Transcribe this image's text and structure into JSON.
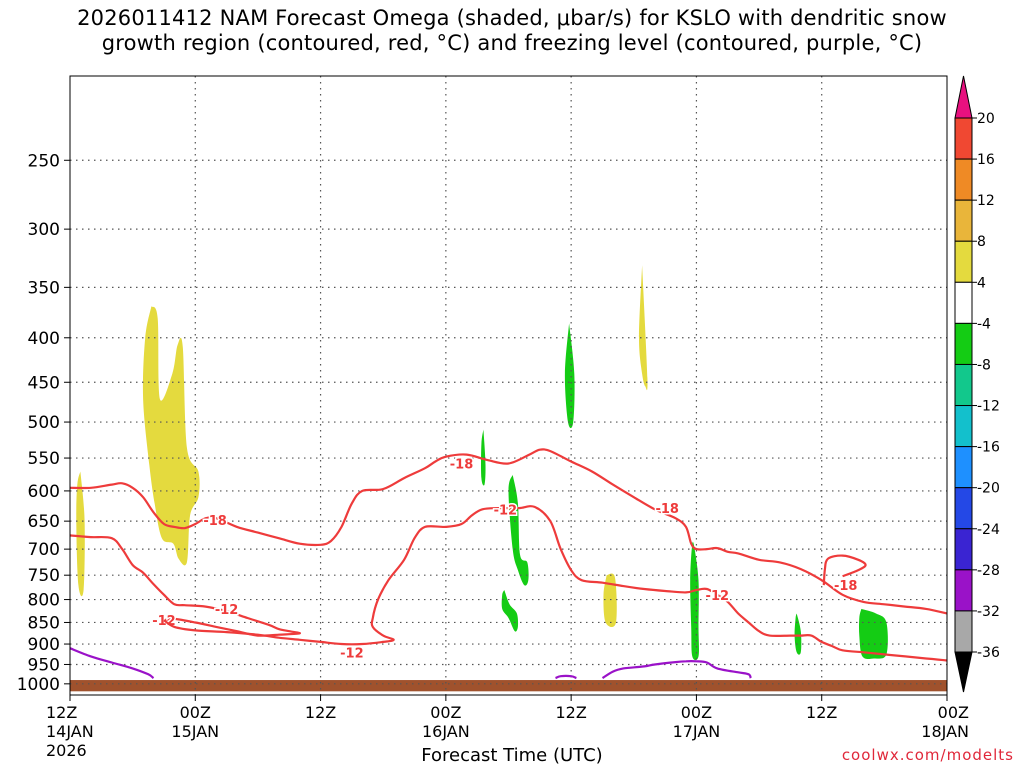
{
  "title": "2026011412 NAM Forecast Omega (shaded, μbar/s) for KSLO with dendritic snow\ngrowth region (contoured, red, °C) and freezing level (contoured, purple, °C)",
  "credit": "coolwx.com/modelts",
  "chart_data": {
    "type": "heatmap",
    "xlabel": "Forecast Time (UTC)",
    "ylabel": "",
    "x_ticks": [
      {
        "h": 0,
        "l1": "12Z",
        "l2": "14JAN",
        "l3": "2026"
      },
      {
        "h": 12,
        "l1": "00Z",
        "l2": "15JAN",
        "l3": ""
      },
      {
        "h": 24,
        "l1": "12Z",
        "l2": "",
        "l3": ""
      },
      {
        "h": 36,
        "l1": "00Z",
        "l2": "16JAN",
        "l3": ""
      },
      {
        "h": 48,
        "l1": "12Z",
        "l2": "",
        "l3": ""
      },
      {
        "h": 60,
        "l1": "00Z",
        "l2": "17JAN",
        "l3": ""
      },
      {
        "h": 72,
        "l1": "12Z",
        "l2": "",
        "l3": ""
      },
      {
        "h": 84,
        "l1": "00Z",
        "l2": "18JAN",
        "l3": ""
      }
    ],
    "xlim_hours": [
      0,
      84
    ],
    "y_ticks": [
      250,
      300,
      350,
      400,
      450,
      500,
      550,
      600,
      650,
      700,
      750,
      800,
      850,
      900,
      950,
      1000
    ],
    "ylim_hPa": [
      1030,
      200
    ],
    "y_scale": "log-pressure",
    "grid": true,
    "colorbar": {
      "levels": [
        20,
        16,
        12,
        8,
        4,
        -4,
        -8,
        -12,
        -16,
        -20,
        -24,
        -28,
        -32,
        -36
      ],
      "colors": [
        "#e8117f",
        "#f04832",
        "#ef8a25",
        "#e9b53a",
        "#e4da3e",
        "#ffffff",
        "#14cc14",
        "#12c88c",
        "#13c0cc",
        "#1e90ff",
        "#2448e6",
        "#3a24d2",
        "#9a12c8",
        "#a8a8a8",
        "#000000"
      ],
      "top_color": "#e8117f",
      "bottom_color": "#000000"
    },
    "omega_areas": [
      {
        "color": "#e4da3e",
        "pts": [
          [
            1.0,
            570
          ],
          [
            1.4,
            650
          ],
          [
            1.3,
            780
          ],
          [
            0.8,
            770
          ],
          [
            0.6,
            650
          ],
          [
            0.7,
            590
          ]
        ]
      },
      {
        "color": "#e4da3e",
        "pts": [
          [
            7.8,
            368
          ],
          [
            8.4,
            380
          ],
          [
            8.6,
            470
          ],
          [
            9.8,
            440
          ],
          [
            10.3,
            408
          ],
          [
            10.8,
            410
          ],
          [
            11.2,
            535
          ],
          [
            12.3,
            570
          ],
          [
            12.3,
            610
          ],
          [
            11.5,
            640
          ],
          [
            11.2,
            725
          ],
          [
            10.4,
            718
          ],
          [
            9.9,
            690
          ],
          [
            8.8,
            680
          ],
          [
            8.1,
            620
          ],
          [
            7.6,
            560
          ],
          [
            7.0,
            470
          ],
          [
            7.2,
            400
          ]
        ]
      },
      {
        "color": "#e4da3e",
        "pts": [
          [
            54.8,
            330
          ],
          [
            55.3,
            445
          ],
          [
            55.1,
            455
          ],
          [
            54.8,
            440
          ],
          [
            54.5,
            400
          ]
        ]
      },
      {
        "color": "#e4da3e",
        "pts": [
          [
            51.4,
            750
          ],
          [
            52.2,
            755
          ],
          [
            52.3,
            850
          ],
          [
            51.3,
            850
          ],
          [
            51.1,
            790
          ]
        ]
      },
      {
        "color": "#14cc14",
        "pts": [
          [
            47.8,
            385
          ],
          [
            48.3,
            440
          ],
          [
            48.2,
            500
          ],
          [
            47.7,
            500
          ],
          [
            47.4,
            440
          ]
        ]
      },
      {
        "color": "#14cc14",
        "pts": [
          [
            39.6,
            510
          ],
          [
            39.8,
            560
          ],
          [
            39.7,
            590
          ],
          [
            39.4,
            580
          ],
          [
            39.4,
            530
          ]
        ]
      },
      {
        "color": "#14cc14",
        "pts": [
          [
            42.4,
            575
          ],
          [
            42.9,
            620
          ],
          [
            43.1,
            710
          ],
          [
            43.8,
            725
          ],
          [
            43.9,
            760
          ],
          [
            43.5,
            770
          ],
          [
            42.9,
            740
          ],
          [
            42.4,
            700
          ],
          [
            42.0,
            600
          ]
        ]
      },
      {
        "color": "#14cc14",
        "pts": [
          [
            41.6,
            780
          ],
          [
            42.1,
            810
          ],
          [
            42.8,
            830
          ],
          [
            42.9,
            860
          ],
          [
            42.6,
            870
          ],
          [
            42.0,
            840
          ],
          [
            41.4,
            820
          ],
          [
            41.4,
            790
          ]
        ]
      },
      {
        "color": "#14cc14",
        "pts": [
          [
            59.8,
            695
          ],
          [
            60.2,
            760
          ],
          [
            60.2,
            860
          ],
          [
            60.2,
            930
          ],
          [
            59.6,
            930
          ],
          [
            59.5,
            860
          ],
          [
            59.4,
            760
          ],
          [
            59.6,
            690
          ]
        ]
      },
      {
        "color": "#14cc14",
        "pts": [
          [
            69.6,
            830
          ],
          [
            70.0,
            870
          ],
          [
            70.0,
            920
          ],
          [
            69.6,
            920
          ],
          [
            69.4,
            880
          ],
          [
            69.5,
            840
          ]
        ]
      },
      {
        "color": "#14cc14",
        "pts": [
          [
            75.8,
            820
          ],
          [
            77.2,
            830
          ],
          [
            78.2,
            850
          ],
          [
            78.2,
            925
          ],
          [
            77.0,
            935
          ],
          [
            75.9,
            930
          ],
          [
            75.6,
            880
          ],
          [
            75.6,
            840
          ]
        ]
      }
    ],
    "contours": [
      {
        "color": "#ee3b3b",
        "width": 2.2,
        "label": "-18",
        "label_at": [
          13.9,
          648
        ],
        "pts": [
          [
            0,
            595
          ],
          [
            2,
            595
          ],
          [
            4,
            590
          ],
          [
            5,
            588
          ],
          [
            6,
            595
          ],
          [
            7,
            610
          ],
          [
            8,
            635
          ],
          [
            9,
            655
          ],
          [
            10,
            660
          ],
          [
            11,
            662
          ],
          [
            12,
            655
          ],
          [
            13,
            645
          ],
          [
            14,
            645
          ],
          [
            16,
            660
          ],
          [
            18,
            670
          ],
          [
            20,
            680
          ],
          [
            22,
            690
          ],
          [
            24,
            692
          ],
          [
            25,
            685
          ],
          [
            26,
            660
          ],
          [
            27,
            620
          ],
          [
            28,
            600
          ],
          [
            30,
            597
          ],
          [
            32,
            580
          ],
          [
            34,
            565
          ],
          [
            35,
            555
          ],
          [
            36,
            548
          ],
          [
            38,
            545
          ],
          [
            40,
            553
          ],
          [
            42,
            558
          ],
          [
            44,
            545
          ],
          [
            45,
            538
          ],
          [
            46,
            540
          ],
          [
            48,
            555
          ],
          [
            50,
            570
          ],
          [
            52,
            590
          ],
          [
            54,
            610
          ],
          [
            56,
            630
          ],
          [
            58,
            645
          ],
          [
            59,
            660
          ],
          [
            59.5,
            690
          ],
          [
            60,
            700
          ],
          [
            61,
            700
          ],
          [
            62,
            698
          ],
          [
            63,
            705
          ],
          [
            64,
            708
          ],
          [
            66,
            720
          ],
          [
            68,
            725
          ],
          [
            70,
            738
          ],
          [
            72,
            760
          ],
          [
            74,
            790
          ],
          [
            76,
            805
          ],
          [
            78,
            810
          ],
          [
            80,
            815
          ],
          [
            82,
            820
          ],
          [
            84,
            830
          ]
        ]
      },
      {
        "color": "#ee3b3b",
        "width": 2.2,
        "label": "-18",
        "label_at": [
          37.5,
          558
        ],
        "pts": []
      },
      {
        "color": "#ee3b3b",
        "width": 2.2,
        "label": "-18",
        "label_at": [
          57.2,
          628
        ],
        "pts": []
      },
      {
        "color": "#ee3b3b",
        "width": 2.2,
        "label": "-18",
        "label_at": [
          74.3,
          770
        ],
        "pts": [
          [
            72.2,
            770
          ],
          [
            72.3,
            740
          ],
          [
            72.6,
            718
          ],
          [
            74,
            712
          ],
          [
            75.5,
            720
          ],
          [
            76.2,
            730
          ],
          [
            75.5,
            740
          ],
          [
            74,
            752
          ]
        ]
      },
      {
        "color": "#ee3b3b",
        "width": 2.2,
        "label": "-12",
        "label_at": [
          15.0,
          820
        ],
        "pts": [
          [
            0,
            675
          ],
          [
            2,
            678
          ],
          [
            4,
            680
          ],
          [
            5,
            700
          ],
          [
            6,
            730
          ],
          [
            7,
            745
          ],
          [
            8,
            768
          ],
          [
            9,
            790
          ],
          [
            10,
            810
          ],
          [
            11,
            812
          ],
          [
            13,
            815
          ],
          [
            15,
            825
          ],
          [
            17,
            840
          ],
          [
            19,
            855
          ],
          [
            20,
            865
          ],
          [
            21,
            870
          ],
          [
            22,
            875
          ],
          [
            20,
            878
          ],
          [
            18,
            880
          ],
          [
            16,
            870
          ],
          [
            14,
            860
          ],
          [
            12,
            850
          ],
          [
            10,
            842
          ],
          [
            9,
            845
          ]
        ]
      },
      {
        "color": "#ee3b3b",
        "width": 2.2,
        "label": "-12",
        "label_at": [
          9.0,
          845
        ],
        "pts": []
      },
      {
        "color": "#ee3b3b",
        "width": 2.2,
        "label": "-12",
        "label_at": [
          27.0,
          920
        ],
        "pts": [
          [
            9,
            845
          ],
          [
            10,
            860
          ],
          [
            12,
            868
          ],
          [
            15,
            872
          ],
          [
            18,
            878
          ],
          [
            20,
            885
          ],
          [
            22,
            890
          ],
          [
            24,
            895
          ],
          [
            26,
            900
          ],
          [
            28,
            900
          ],
          [
            30,
            895
          ],
          [
            31,
            890
          ],
          [
            30,
            880
          ],
          [
            29,
            860
          ],
          [
            29,
            840
          ],
          [
            29.5,
            800
          ],
          [
            30.5,
            760
          ],
          [
            32,
            720
          ],
          [
            33,
            680
          ],
          [
            34,
            660
          ],
          [
            36,
            660
          ],
          [
            37.5,
            655
          ],
          [
            38.5,
            640
          ],
          [
            39.5,
            630
          ],
          [
            41,
            628
          ],
          [
            43,
            628
          ],
          [
            44.5,
            626
          ],
          [
            46,
            650
          ],
          [
            47,
            700
          ],
          [
            48,
            740
          ],
          [
            49,
            760
          ],
          [
            51,
            765
          ],
          [
            53,
            772
          ],
          [
            55,
            778
          ],
          [
            57,
            782
          ],
          [
            59,
            785
          ],
          [
            60,
            780
          ],
          [
            61,
            778
          ],
          [
            62,
            790
          ],
          [
            63,
            805
          ],
          [
            64,
            830
          ],
          [
            65,
            850
          ],
          [
            66,
            870
          ],
          [
            67,
            880
          ],
          [
            69,
            880
          ],
          [
            70,
            880
          ],
          [
            71,
            880
          ],
          [
            72,
            895
          ],
          [
            73,
            905
          ],
          [
            74,
            915
          ],
          [
            76,
            920
          ],
          [
            78,
            925
          ],
          [
            80,
            930
          ],
          [
            82,
            935
          ],
          [
            84,
            940
          ]
        ]
      },
      {
        "color": "#ee3b3b",
        "width": 2.2,
        "label": "-12",
        "label_at": [
          41.7,
          630
        ],
        "pts": []
      },
      {
        "color": "#ee3b3b",
        "width": 2.2,
        "label": "-12",
        "label_at": [
          62.0,
          790
        ],
        "pts": []
      },
      {
        "color": "#9a12c8",
        "width": 2.2,
        "label": "",
        "label_at": null,
        "pts": [
          [
            0,
            910
          ],
          [
            2,
            930
          ],
          [
            4,
            945
          ],
          [
            6,
            960
          ],
          [
            7.5,
            975
          ],
          [
            8.0,
            985
          ]
        ]
      },
      {
        "color": "#9a12c8",
        "width": 2.2,
        "label": "",
        "label_at": null,
        "pts": [
          [
            46.5,
            985
          ],
          [
            47,
            980
          ],
          [
            48,
            980
          ],
          [
            48.5,
            985
          ]
        ]
      },
      {
        "color": "#9a12c8",
        "width": 2.2,
        "label": "",
        "label_at": null,
        "pts": [
          [
            51,
            985
          ],
          [
            52,
            968
          ],
          [
            53,
            960
          ],
          [
            55,
            955
          ],
          [
            56,
            950
          ],
          [
            58,
            944
          ],
          [
            59,
            942
          ],
          [
            60,
            942
          ],
          [
            61,
            945
          ],
          [
            62,
            960
          ],
          [
            64,
            970
          ],
          [
            65,
            975
          ],
          [
            65.2,
            985
          ]
        ]
      }
    ],
    "surface": {
      "color": "#a0522d",
      "pressure_hPa": 990,
      "bottom_hPa": 1020
    }
  }
}
